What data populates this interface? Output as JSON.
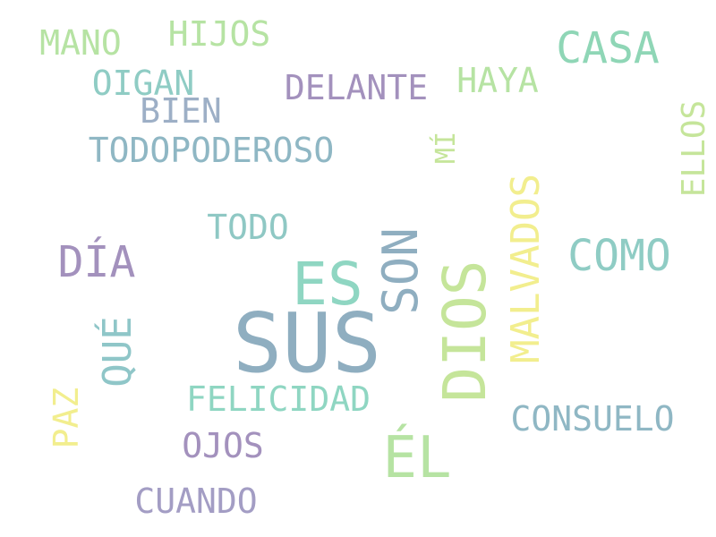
{
  "palette": {
    "blue": "#8FAEC0",
    "teal": "#8FD2BF",
    "purple": "#A391BD",
    "green": "#B6E3A3",
    "yellow": "#F2EE8E",
    "slate": "#8FB7C4"
  },
  "words": [
    {
      "id": "sus",
      "text": "SUS",
      "color": "#8FAEC0"
    },
    {
      "id": "dios",
      "text": "DIOS",
      "color": "#C5E59A"
    },
    {
      "id": "el",
      "text": "ÉL",
      "color": "#B6E3A3"
    },
    {
      "id": "es",
      "text": "ES",
      "color": "#8FD6C2"
    },
    {
      "id": "son",
      "text": "SON",
      "color": "#8FAEC0"
    },
    {
      "id": "malvados",
      "text": "MALVADOS",
      "color": "#F2EE8E"
    },
    {
      "id": "casa",
      "text": "CASA",
      "color": "#8FD6B6"
    },
    {
      "id": "como",
      "text": "COMO",
      "color": "#8FCCC4"
    },
    {
      "id": "dia",
      "text": "DÍA",
      "color": "#A391BD"
    },
    {
      "id": "que",
      "text": "QUÉ",
      "color": "#8FC6C8"
    },
    {
      "id": "felicidad",
      "text": "FELICIDAD",
      "color": "#8FD6C2"
    },
    {
      "id": "consuelo",
      "text": "CONSUELO",
      "color": "#8FB7C4"
    },
    {
      "id": "cuando",
      "text": "CUANDO",
      "color": "#A39DC4"
    },
    {
      "id": "ojos",
      "text": "OJOS",
      "color": "#A391BD"
    },
    {
      "id": "paz",
      "text": "PAZ",
      "color": "#F2EE8E"
    },
    {
      "id": "todo",
      "text": "TODO",
      "color": "#8FC8C4"
    },
    {
      "id": "todopoderoso",
      "text": "TODOPODEROSO",
      "color": "#8FB7C4"
    },
    {
      "id": "bien",
      "text": "BIEN",
      "color": "#9DAFC6"
    },
    {
      "id": "oigan",
      "text": "OIGAN",
      "color": "#8FCCC4"
    },
    {
      "id": "mano",
      "text": "MANO",
      "color": "#B6E3A3"
    },
    {
      "id": "hijos",
      "text": "HIJOS",
      "color": "#B6E3A3"
    },
    {
      "id": "delante",
      "text": "DELANTE",
      "color": "#A391BD"
    },
    {
      "id": "haya",
      "text": "HAYA",
      "color": "#B6E3A3"
    },
    {
      "id": "mi",
      "text": "MÍ",
      "color": "#C5E59A"
    },
    {
      "id": "ellos",
      "text": "ELLOS",
      "color": "#C5E59A"
    }
  ]
}
